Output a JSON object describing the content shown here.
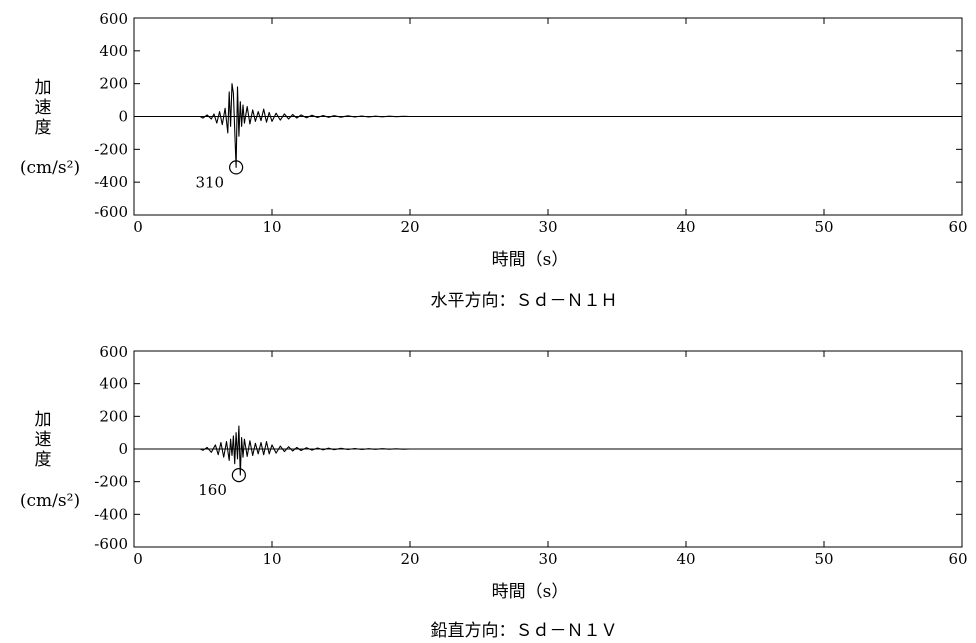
{
  "chart_data": [
    {
      "type": "line",
      "title": "水平方向：Ｓｄ－Ｎ１Ｈ",
      "xlabel": "時間（s）",
      "ylabel_lines": [
        "加",
        "速",
        "度",
        "(cm/s²)"
      ],
      "xlim": [
        0,
        60
      ],
      "ylim": [
        -600,
        600
      ],
      "xticks": [
        "0",
        "10",
        "20",
        "30",
        "40",
        "50",
        "60"
      ],
      "yticks": [
        "600",
        "400",
        "200",
        "0",
        "-200",
        "-400",
        "-600"
      ],
      "grid": false,
      "series": [
        {
          "x": [
            0,
            4.8,
            5.0,
            5.3,
            5.6,
            5.8,
            6.0,
            6.2,
            6.4,
            6.6,
            6.8,
            6.9,
            7.0,
            7.1,
            7.2,
            7.3,
            7.4,
            7.5,
            7.6,
            7.7,
            7.8,
            7.9,
            8.0,
            8.2,
            8.4,
            8.6,
            8.8,
            9.0,
            9.2,
            9.4,
            9.6,
            9.8,
            10.0,
            10.3,
            10.6,
            10.9,
            11.2,
            11.5,
            11.8,
            12.1,
            12.5,
            12.9,
            13.3,
            13.7,
            14.1,
            14.5,
            15.0,
            15.5,
            16.0,
            16.5,
            17.0,
            17.5,
            18.0,
            18.5,
            19.0,
            19.5,
            20.0,
            60
          ],
          "y": [
            0,
            0,
            -10,
            10,
            -15,
            15,
            -40,
            30,
            -50,
            50,
            -100,
            150,
            -60,
            200,
            140,
            -80,
            -310,
            180,
            -120,
            90,
            -60,
            70,
            -40,
            60,
            -45,
            40,
            -30,
            30,
            -25,
            45,
            -35,
            25,
            -30,
            20,
            -22,
            16,
            -15,
            12,
            -10,
            10,
            -8,
            8,
            -6,
            6,
            -5,
            5,
            -4,
            4,
            -3,
            3,
            -3,
            2,
            -2,
            2,
            -1,
            1,
            0,
            0
          ]
        }
      ],
      "annotation": {
        "x": 7.4,
        "y": -310,
        "label": "310"
      }
    },
    {
      "type": "line",
      "title": "鉛直方向：Ｓｄ－Ｎ１Ｖ",
      "xlabel": "時間（s）",
      "ylabel_lines": [
        "加",
        "速",
        "度",
        "(cm/s²)"
      ],
      "xlim": [
        0,
        60
      ],
      "ylim": [
        -600,
        600
      ],
      "xticks": [
        "0",
        "10",
        "20",
        "30",
        "40",
        "50",
        "60"
      ],
      "yticks": [
        "600",
        "400",
        "200",
        "0",
        "-200",
        "-400",
        "-600"
      ],
      "grid": false,
      "series": [
        {
          "x": [
            0,
            4.8,
            5.0,
            5.3,
            5.6,
            5.9,
            6.1,
            6.3,
            6.5,
            6.7,
            6.9,
            7.0,
            7.1,
            7.2,
            7.3,
            7.4,
            7.5,
            7.6,
            7.7,
            7.8,
            7.9,
            8.0,
            8.2,
            8.4,
            8.6,
            8.8,
            9.0,
            9.2,
            9.4,
            9.6,
            9.8,
            10.0,
            10.3,
            10.6,
            10.9,
            11.2,
            11.5,
            11.8,
            12.1,
            12.5,
            12.9,
            13.3,
            13.7,
            14.1,
            14.5,
            15.0,
            15.5,
            16.0,
            16.5,
            17.0,
            17.5,
            18.0,
            18.5,
            19.0,
            19.5,
            20.0,
            60
          ],
          "y": [
            0,
            0,
            -8,
            10,
            -20,
            25,
            -35,
            40,
            -50,
            45,
            -70,
            60,
            -40,
            80,
            -90,
            100,
            -60,
            140,
            -160,
            70,
            -50,
            60,
            -45,
            50,
            -40,
            35,
            -30,
            40,
            -35,
            45,
            -30,
            25,
            -25,
            18,
            -16,
            14,
            -12,
            10,
            -9,
            8,
            -7,
            6,
            -5,
            5,
            -4,
            4,
            -3,
            3,
            -3,
            2,
            -2,
            2,
            -1,
            1,
            -1,
            0,
            0
          ]
        }
      ],
      "annotation": {
        "x": 7.6,
        "y": -160,
        "label": "160"
      }
    }
  ]
}
